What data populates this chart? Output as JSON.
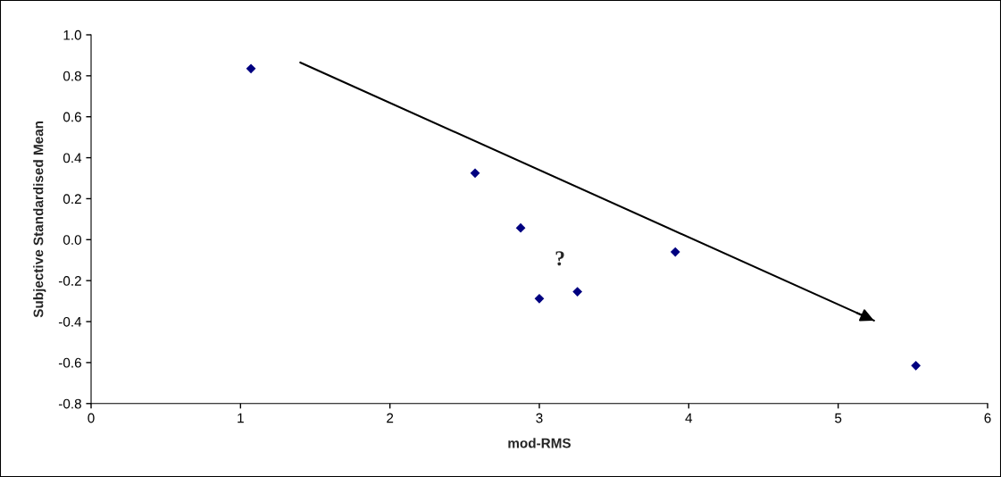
{
  "chart_data": {
    "type": "scatter",
    "xlabel": "mod-RMS",
    "ylabel": "Subjective Standardised Mean",
    "x": [
      1.07,
      2.57,
      2.875,
      3.0,
      3.255,
      3.91,
      5.52
    ],
    "series": [
      {
        "color": "#000080",
        "marker": "diamond",
        "values": [
          0.835,
          0.325,
          0.057,
          -0.288,
          -0.254,
          -0.06,
          -0.615
        ]
      },
      {
        "type": "line",
        "color": "#000000",
        "x": [
          1.4,
          5.24
        ],
        "values": [
          0.865,
          -0.395
        ]
      }
    ],
    "annotations": [
      "?"
    ],
    "xlim": [
      0,
      6
    ],
    "xticks": [
      0,
      1,
      2,
      3,
      4,
      5,
      6
    ],
    "ylim": [
      -0.8,
      1.0
    ],
    "yticks": [
      {
        "value": -0.8,
        "label": "-0.8"
      },
      {
        "value": -0.6,
        "label": "-0.6"
      },
      {
        "value": -0.4,
        "label": "-0.4"
      },
      {
        "value": -0.2,
        "label": "-0.2"
      },
      {
        "value": 0.0,
        "label": "0.0"
      },
      {
        "value": 0.2,
        "label": "0.2"
      },
      {
        "value": 0.4,
        "label": "0.4"
      },
      {
        "value": 0.6,
        "label": "0.6"
      },
      {
        "value": 0.8,
        "label": "0.8"
      },
      {
        "value": 1.0,
        "label": "1.0"
      }
    ],
    "grid": false,
    "legend": false
  }
}
